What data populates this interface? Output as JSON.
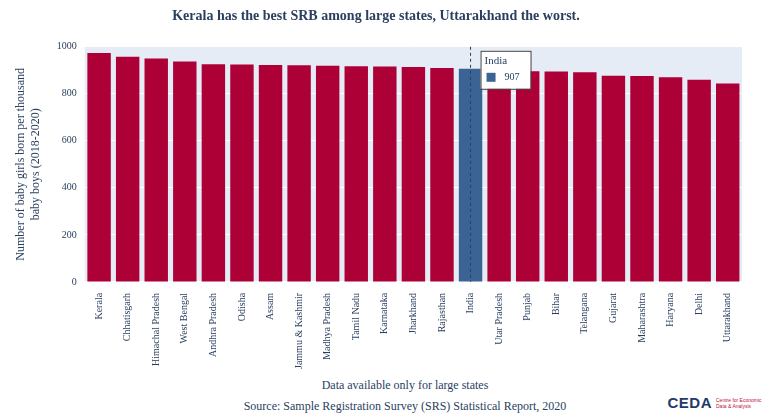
{
  "chart_data": {
    "type": "bar",
    "title": "Kerala has the best SRB among large states, Uttarakhand the worst.",
    "y_label": "Number of baby girls born per thousand baby boys (2018-2020)",
    "x_label": "Data available only for large states",
    "source": "Source: Sample Registration Survey (SRS) Statistical Report, 2020",
    "logo": {
      "name": "CEDA",
      "text": "Centre for Economic Data & Analysis"
    },
    "categories": [
      "Kerala",
      "Chhatisgarh",
      "Himachal Pradesh",
      "West Bengal",
      "Andhra Pradesh",
      "Odisha",
      "Assam",
      "Jammu & Kashmir",
      "Madhya Pradesh",
      "Tamil Nadu",
      "Karnataka",
      "Jharkhand",
      "Rajasthan",
      "India",
      "Utar Pradesh",
      "Punjab",
      "Bihar",
      "Telangana",
      "Gujarat",
      "Maharashtra",
      "Haryana",
      "Delhi",
      "Uttarakhand"
    ],
    "values": [
      974,
      958,
      950,
      937,
      926,
      925,
      923,
      921,
      919,
      917,
      916,
      914,
      910,
      907,
      896,
      896,
      895,
      892,
      877,
      876,
      870,
      860,
      844
    ],
    "colors": [
      "#ad0036",
      "#ad0036",
      "#ad0036",
      "#ad0036",
      "#ad0036",
      "#ad0036",
      "#ad0036",
      "#ad0036",
      "#ad0036",
      "#ad0036",
      "#ad0036",
      "#ad0036",
      "#ad0036",
      "#3b6494",
      "#ad0036",
      "#ad0036",
      "#ad0036",
      "#ad0036",
      "#ad0036",
      "#ad0036",
      "#ad0036",
      "#ad0036",
      "#ad0036"
    ],
    "annotation": {
      "category": "India",
      "label": "India",
      "value": 907
    },
    "ylim": [
      0,
      1000
    ],
    "yticks": [
      0,
      200,
      400,
      600,
      800,
      1000
    ],
    "grid": true,
    "data_labels": false
  }
}
